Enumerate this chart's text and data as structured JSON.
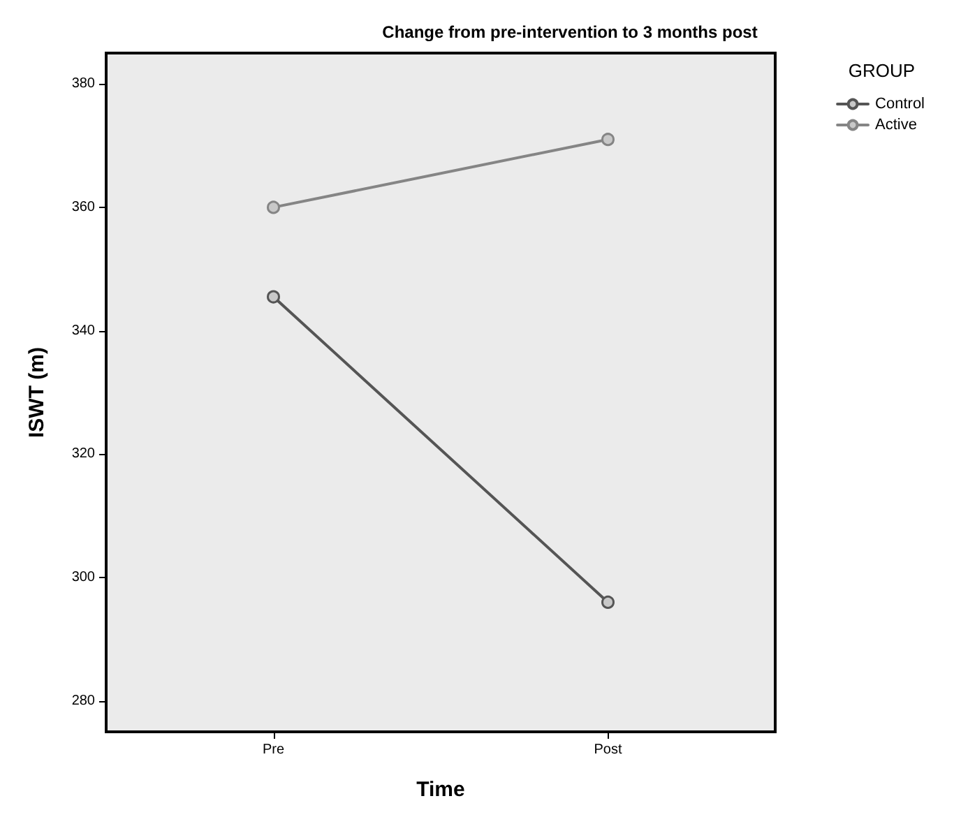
{
  "chart_data": {
    "type": "line",
    "title": "Change from pre-intervention to 3 months post",
    "xlabel": "Time",
    "ylabel": "ISWT (m)",
    "legend_title": "GROUP",
    "categories": [
      "Pre",
      "Post"
    ],
    "series": [
      {
        "name": "Control",
        "color": "#555555",
        "values": [
          345.5,
          296
        ]
      },
      {
        "name": "Active",
        "color": "#858585",
        "values": [
          360,
          371
        ]
      }
    ],
    "ylim": [
      275,
      385
    ],
    "yticks": [
      280,
      300,
      320,
      340,
      360,
      380
    ],
    "grid": false,
    "legend": "top right",
    "marker": "circle",
    "line_style": "solid"
  }
}
